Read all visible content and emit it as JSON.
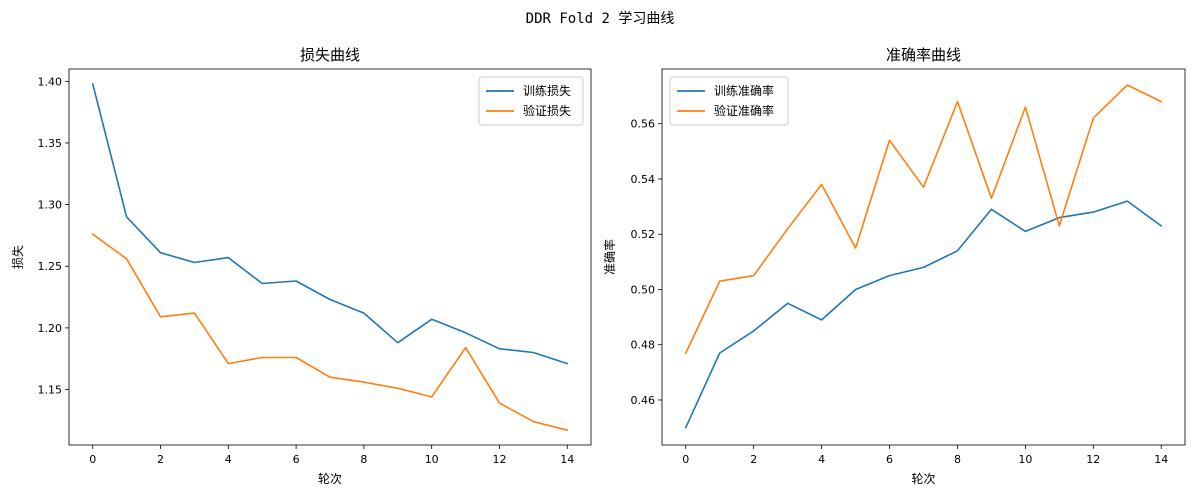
{
  "figure": {
    "suptitle": "DDR Fold 2 学习曲线"
  },
  "chart_data": [
    {
      "type": "line",
      "title": "损失曲线",
      "xlabel": "轮次",
      "ylabel": "损失",
      "x": [
        0,
        1,
        2,
        3,
        4,
        5,
        6,
        7,
        8,
        9,
        10,
        11,
        12,
        13,
        14
      ],
      "xticks": [
        0,
        2,
        4,
        6,
        8,
        10,
        12,
        14
      ],
      "yticks": [
        1.15,
        1.2,
        1.25,
        1.3,
        1.35,
        1.4
      ],
      "xlim": [
        -0.7,
        14.7
      ],
      "ylim": [
        1.105,
        1.41
      ],
      "ytick_decimals": 2,
      "legend_position": "top-right",
      "series": [
        {
          "name": "训练损失",
          "color": "#1f77b4",
          "values": [
            1.398,
            1.29,
            1.261,
            1.253,
            1.257,
            1.236,
            1.238,
            1.223,
            1.212,
            1.188,
            1.207,
            1.196,
            1.183,
            1.18,
            1.171
          ]
        },
        {
          "name": "验证损失",
          "color": "#ff7f0e",
          "values": [
            1.276,
            1.256,
            1.209,
            1.212,
            1.171,
            1.176,
            1.176,
            1.16,
            1.156,
            1.151,
            1.144,
            1.184,
            1.139,
            1.124,
            1.117
          ]
        }
      ]
    },
    {
      "type": "line",
      "title": "准确率曲线",
      "xlabel": "轮次",
      "ylabel": "准确率",
      "x": [
        0,
        1,
        2,
        3,
        4,
        5,
        6,
        7,
        8,
        9,
        10,
        11,
        12,
        13,
        14
      ],
      "xticks": [
        0,
        2,
        4,
        6,
        8,
        10,
        12,
        14
      ],
      "yticks": [
        0.46,
        0.48,
        0.5,
        0.52,
        0.54,
        0.56
      ],
      "xlim": [
        -0.7,
        14.7
      ],
      "ylim": [
        0.4437,
        0.5798
      ],
      "ytick_decimals": 2,
      "legend_position": "top-left",
      "series": [
        {
          "name": "训练准确率",
          "color": "#1f77b4",
          "values": [
            0.45,
            0.477,
            0.485,
            0.495,
            0.489,
            0.5,
            0.505,
            0.508,
            0.514,
            0.529,
            0.521,
            0.526,
            0.528,
            0.532,
            0.523
          ]
        },
        {
          "name": "验证准确率",
          "color": "#ff7f0e",
          "values": [
            0.477,
            0.503,
            0.505,
            0.522,
            0.538,
            0.515,
            0.554,
            0.537,
            0.568,
            0.533,
            0.566,
            0.523,
            0.562,
            0.574,
            0.568
          ]
        }
      ]
    }
  ]
}
